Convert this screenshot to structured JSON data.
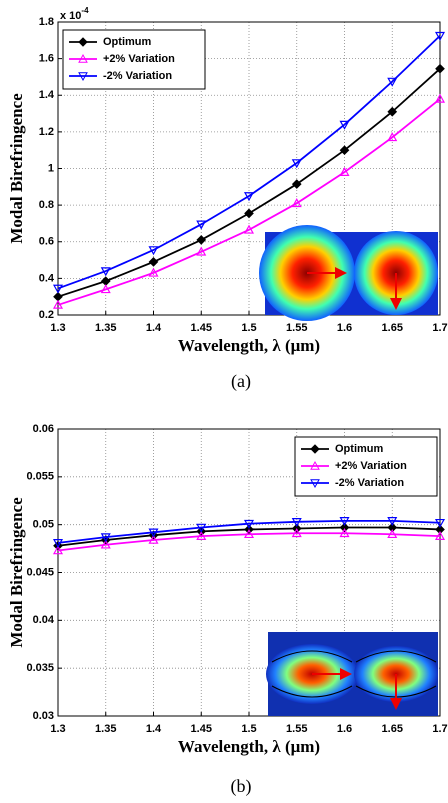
{
  "chart_data": [
    {
      "type": "line",
      "caption": "(a)",
      "x_label": "Wavelength, λ (μm)",
      "y_label": "Modal Birefringence",
      "y_multiplier_base": "x 10",
      "y_multiplier_exponent": "-4",
      "x": [
        1.3,
        1.35,
        1.4,
        1.45,
        1.5,
        1.55,
        1.6,
        1.65,
        1.7
      ],
      "xlim": [
        1.3,
        1.7
      ],
      "xticks": [
        1.3,
        1.35,
        1.4,
        1.45,
        1.5,
        1.55,
        1.6,
        1.65,
        1.7
      ],
      "ylim": [
        0.2,
        1.8
      ],
      "yticks": [
        0.2,
        0.4,
        0.6,
        0.8,
        1,
        1.2,
        1.4,
        1.6,
        1.8
      ],
      "grid": true,
      "legend": "upper left",
      "series": [
        {
          "name": "Optimum",
          "color": "#000000",
          "marker": "diamond",
          "values": [
            0.3,
            0.385,
            0.49,
            0.61,
            0.755,
            0.915,
            1.1,
            1.31,
            1.545
          ]
        },
        {
          "name": "+2% Variation",
          "color": "#ff00ff",
          "marker": "triangle-up",
          "values": [
            0.255,
            0.34,
            0.43,
            0.545,
            0.665,
            0.81,
            0.98,
            1.17,
            1.38
          ]
        },
        {
          "name": "-2% Variation",
          "color": "#0000ff",
          "marker": "triangle-down",
          "values": [
            0.345,
            0.44,
            0.555,
            0.695,
            0.85,
            1.03,
            1.24,
            1.475,
            1.725
          ]
        }
      ]
    },
    {
      "type": "line",
      "caption": "(b)",
      "x_label": "Wavelength, λ (μm)",
      "y_label": "Modal Birefringence",
      "x": [
        1.3,
        1.35,
        1.4,
        1.45,
        1.5,
        1.55,
        1.6,
        1.65,
        1.7
      ],
      "xlim": [
        1.3,
        1.7
      ],
      "xticks": [
        1.3,
        1.35,
        1.4,
        1.45,
        1.5,
        1.55,
        1.6,
        1.65,
        1.7
      ],
      "ylim": [
        0.03,
        0.06
      ],
      "yticks": [
        0.03,
        0.035,
        0.04,
        0.045,
        0.05,
        0.055,
        0.06
      ],
      "grid": true,
      "legend": "upper right",
      "series": [
        {
          "name": "Optimum",
          "color": "#000000",
          "marker": "diamond",
          "values": [
            0.0478,
            0.0484,
            0.0489,
            0.0493,
            0.0495,
            0.0496,
            0.0497,
            0.0497,
            0.0495
          ]
        },
        {
          "name": "+2% Variation",
          "color": "#ff00ff",
          "marker": "triangle-up",
          "values": [
            0.0473,
            0.0479,
            0.0484,
            0.0488,
            0.049,
            0.0491,
            0.0491,
            0.049,
            0.0488
          ]
        },
        {
          "name": "-2% Variation",
          "color": "#0000ff",
          "marker": "triangle-down",
          "values": [
            0.0481,
            0.0487,
            0.0492,
            0.0497,
            0.0501,
            0.0503,
            0.0504,
            0.0504,
            0.0502
          ]
        }
      ]
    }
  ]
}
